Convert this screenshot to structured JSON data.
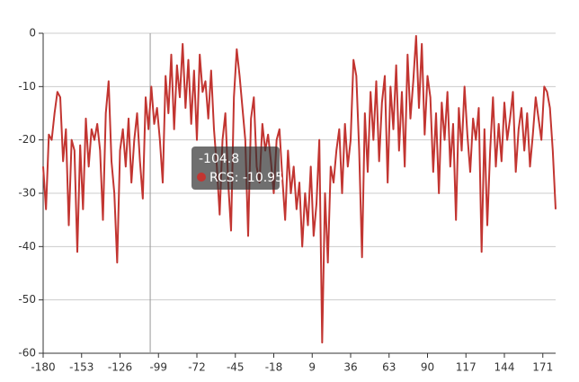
{
  "chart_data": {
    "type": "line",
    "x": [
      -180,
      -178,
      -176,
      -174,
      -172,
      -170,
      -168,
      -166,
      -164,
      -162,
      -160,
      -158,
      -156,
      -154,
      -152,
      -150,
      -148,
      -146,
      -144,
      -142,
      -140,
      -138,
      -136,
      -134,
      -132,
      -130,
      -128,
      -126,
      -124,
      -122,
      -120,
      -118,
      -116,
      -114,
      -112,
      -110,
      -108,
      -106,
      -104,
      -102,
      -100,
      -98,
      -96,
      -94,
      -92,
      -90,
      -88,
      -86,
      -84,
      -82,
      -80,
      -78,
      -76,
      -74,
      -72,
      -70,
      -68,
      -66,
      -64,
      -62,
      -60,
      -58,
      -56,
      -54,
      -52,
      -50,
      -48,
      -46,
      -44,
      -42,
      -40,
      -38,
      -36,
      -34,
      -32,
      -30,
      -28,
      -26,
      -24,
      -22,
      -20,
      -18,
      -16,
      -14,
      -12,
      -10,
      -8,
      -6,
      -4,
      -2,
      0,
      2,
      4,
      6,
      8,
      10,
      12,
      14,
      16,
      18,
      20,
      22,
      24,
      26,
      28,
      30,
      32,
      34,
      36,
      38,
      40,
      42,
      44,
      46,
      48,
      50,
      52,
      54,
      56,
      58,
      60,
      62,
      64,
      66,
      68,
      70,
      72,
      74,
      76,
      78,
      80,
      82,
      84,
      86,
      88,
      90,
      92,
      94,
      96,
      98,
      100,
      102,
      104,
      106,
      108,
      110,
      112,
      114,
      116,
      118,
      120,
      122,
      124,
      126,
      128,
      130,
      132,
      134,
      136,
      138,
      140,
      142,
      144,
      146,
      148,
      150,
      152,
      154,
      156,
      158,
      160,
      162,
      164,
      166,
      168,
      170,
      172,
      174,
      176,
      178,
      180
    ],
    "series": [
      {
        "name": "RCS",
        "color": "#c23531",
        "values": [
          -25,
          -33,
          -19,
          -20,
          -15,
          -11,
          -12,
          -24,
          -18,
          -36,
          -20,
          -22,
          -41,
          -21,
          -33,
          -16,
          -25,
          -18,
          -20,
          -17,
          -22,
          -35,
          -15,
          -9,
          -24,
          -30,
          -43,
          -22,
          -18,
          -25,
          -16,
          -28,
          -20,
          -15,
          -24,
          -31,
          -12,
          -18,
          -10,
          -17,
          -14,
          -20,
          -28,
          -8,
          -15,
          -4,
          -18,
          -6,
          -12,
          -2,
          -14,
          -5,
          -17,
          -7,
          -20,
          -4,
          -11,
          -9,
          -16,
          -7,
          -18,
          -25,
          -34,
          -20,
          -15,
          -28,
          -37,
          -12,
          -3,
          -8,
          -14,
          -20,
          -38,
          -16,
          -12,
          -25,
          -28,
          -17,
          -22,
          -19,
          -24,
          -30,
          -20,
          -18,
          -27,
          -35,
          -22,
          -30,
          -25,
          -33,
          -28,
          -40,
          -30,
          -36,
          -25,
          -38,
          -32,
          -20,
          -58,
          -30,
          -43,
          -25,
          -28,
          -22,
          -18,
          -30,
          -17,
          -25,
          -20,
          -5,
          -8,
          -22,
          -42,
          -15,
          -26,
          -11,
          -20,
          -9,
          -24,
          -13,
          -8,
          -28,
          -10,
          -18,
          -6,
          -22,
          -11,
          -25,
          -4,
          -16,
          -9,
          -0.5,
          -14,
          -2,
          -19,
          -8,
          -12,
          -26,
          -15,
          -30,
          -13,
          -20,
          -11,
          -25,
          -17,
          -35,
          -14,
          -22,
          -10,
          -19,
          -26,
          -16,
          -20,
          -14,
          -41,
          -18,
          -36,
          -22,
          -12,
          -25,
          -17,
          -24,
          -13,
          -20,
          -16,
          -11,
          -26,
          -18,
          -14,
          -22,
          -15,
          -25,
          -19,
          -12,
          -16,
          -20,
          -10,
          -11,
          -14,
          -22,
          -33
        ]
      }
    ],
    "xlim": [
      -180,
      180
    ],
    "xticks": [
      -180,
      -153,
      -126,
      -99,
      -72,
      -45,
      -18,
      9,
      36,
      63,
      90,
      117,
      144,
      171
    ],
    "ylim": [
      -60,
      0
    ],
    "yticks": [
      -60,
      -50,
      -40,
      -30,
      -20,
      -10,
      0
    ],
    "grid": true,
    "tooltip": {
      "x": -104.8,
      "text": "RCS: -10.95"
    }
  }
}
